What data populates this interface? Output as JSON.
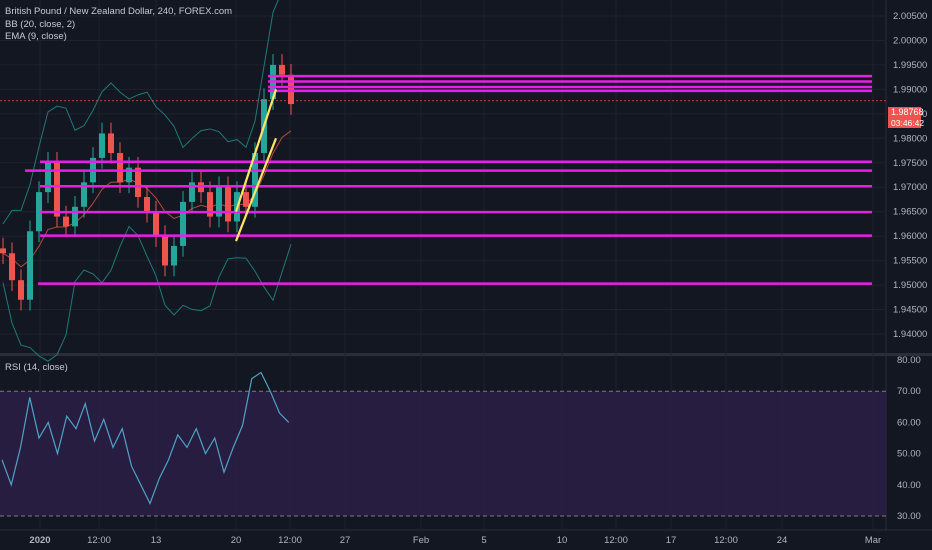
{
  "chart_data": [
    {
      "type": "candlestick",
      "title": "British Pound / New Zealand Dollar, 240, FOREX.com",
      "indicators": [
        "BB (20, close, 2)",
        "EMA (9, close)"
      ],
      "x_tick_labels": [
        "2020",
        "12:00",
        "13",
        "20",
        "12:00",
        "27",
        "Feb",
        "5",
        "10",
        "12:00",
        "17",
        "12:00",
        "24",
        "Mar"
      ],
      "y_tick_labels": [
        "2.00500",
        "2.00000",
        "1.99500",
        "1.99000",
        "1.98500",
        "1.98000",
        "1.97500",
        "1.97000",
        "1.96500",
        "1.96000",
        "1.95500",
        "1.95000",
        "1.94500",
        "1.94000"
      ],
      "ylim": [
        1.9375,
        2.006
      ],
      "last_price": "1.98768",
      "countdown": "03:46:42",
      "horizontal_levels": [
        1.9927,
        1.9916,
        1.9905,
        1.9897,
        1.9752,
        1.9734,
        1.9702,
        1.9649,
        1.9601,
        1.9503
      ],
      "close_prices": [
        1.9565,
        1.951,
        1.947,
        1.961,
        1.969,
        1.975,
        1.964,
        1.962,
        1.966,
        1.971,
        1.976,
        1.981,
        1.977,
        1.971,
        1.974,
        1.968,
        1.965,
        1.96,
        1.954,
        1.958,
        1.967,
        1.971,
        1.969,
        1.964,
        1.97,
        1.963,
        1.969,
        1.966,
        1.977,
        1.988,
        1.995,
        1.993,
        1.987
      ],
      "colors": {
        "up": "#26a69a",
        "down": "#ef5350",
        "levels": "#e91ee9",
        "trendline": "#ffe566",
        "bands": "#1f7a78",
        "ema": "#b94a3a"
      }
    },
    {
      "type": "line",
      "title": "RSI (14, close)",
      "y_tick_labels": [
        "80.00",
        "70.00",
        "60.00",
        "50.00",
        "40.00",
        "30.00"
      ],
      "ylim": [
        26,
        81
      ],
      "overbought": 70,
      "oversold": 30,
      "values": [
        48,
        40,
        52,
        68,
        55,
        60,
        50,
        62,
        58,
        66,
        54,
        61,
        52,
        58,
        46,
        40,
        34,
        42,
        48,
        56,
        52,
        58,
        50,
        55,
        44,
        52,
        59,
        74,
        76,
        70,
        63,
        60
      ],
      "colors": {
        "line": "#4fa3c6",
        "zone": "#2a1e45"
      }
    }
  ]
}
